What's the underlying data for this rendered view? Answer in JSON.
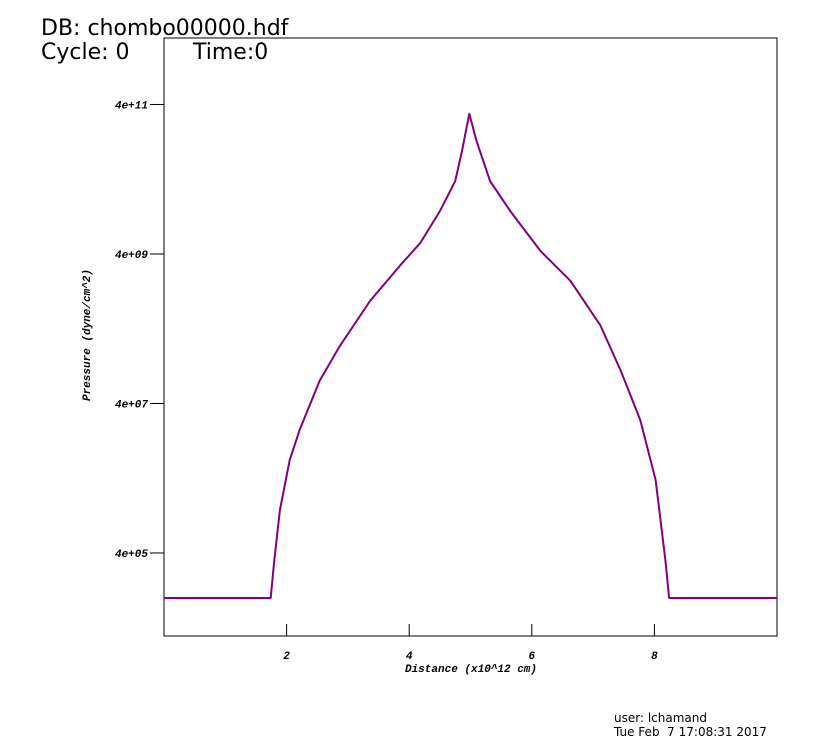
{
  "chart_data": {
    "type": "line",
    "annotations": [
      "DB: chombo00000.hdf",
      "Cycle: 0",
      "Time:0",
      "user: lchamand",
      "Tue Feb  7 17:08:31 2017"
    ],
    "x_label": "Distance (x10^12 cm)",
    "y_label": "Pressure (dyne/cm^2)",
    "log_y": true,
    "color": "#800080",
    "xlim": [
      0,
      10
    ],
    "xticks": [
      2,
      4,
      6,
      8
    ],
    "ylim": [
      31000,
      3100000000000
    ],
    "yticks": [
      {
        "value": 400000,
        "label": "4e+05"
      },
      {
        "value": 40000000,
        "label": "4e+07"
      },
      {
        "value": 4000000000,
        "label": "4e+09"
      },
      {
        "value": 400000000000,
        "label": "4e+11"
      }
    ],
    "x": [
      0,
      1.74,
      1.8,
      1.89,
      2.05,
      2.21,
      2.54,
      2.87,
      3.36,
      3.85,
      4.18,
      4.5,
      4.75,
      4.86,
      4.98,
      5.1,
      5.32,
      5.65,
      6.14,
      6.63,
      7.12,
      7.45,
      7.77,
      8.02,
      8.18,
      8.24,
      10
    ],
    "values": [
      100000,
      100000,
      320000,
      1500000,
      7000000,
      17500000,
      81000000,
      236000000,
      940000000,
      2800000000,
      5600000000,
      15000000000,
      37600000000,
      94000000000,
      300000000000,
      129000000000,
      37600000000,
      15000000000,
      4400000000,
      1750000000,
      440000000,
      110000000,
      24000000,
      3800000,
      320000,
      100000,
      100000
    ]
  }
}
